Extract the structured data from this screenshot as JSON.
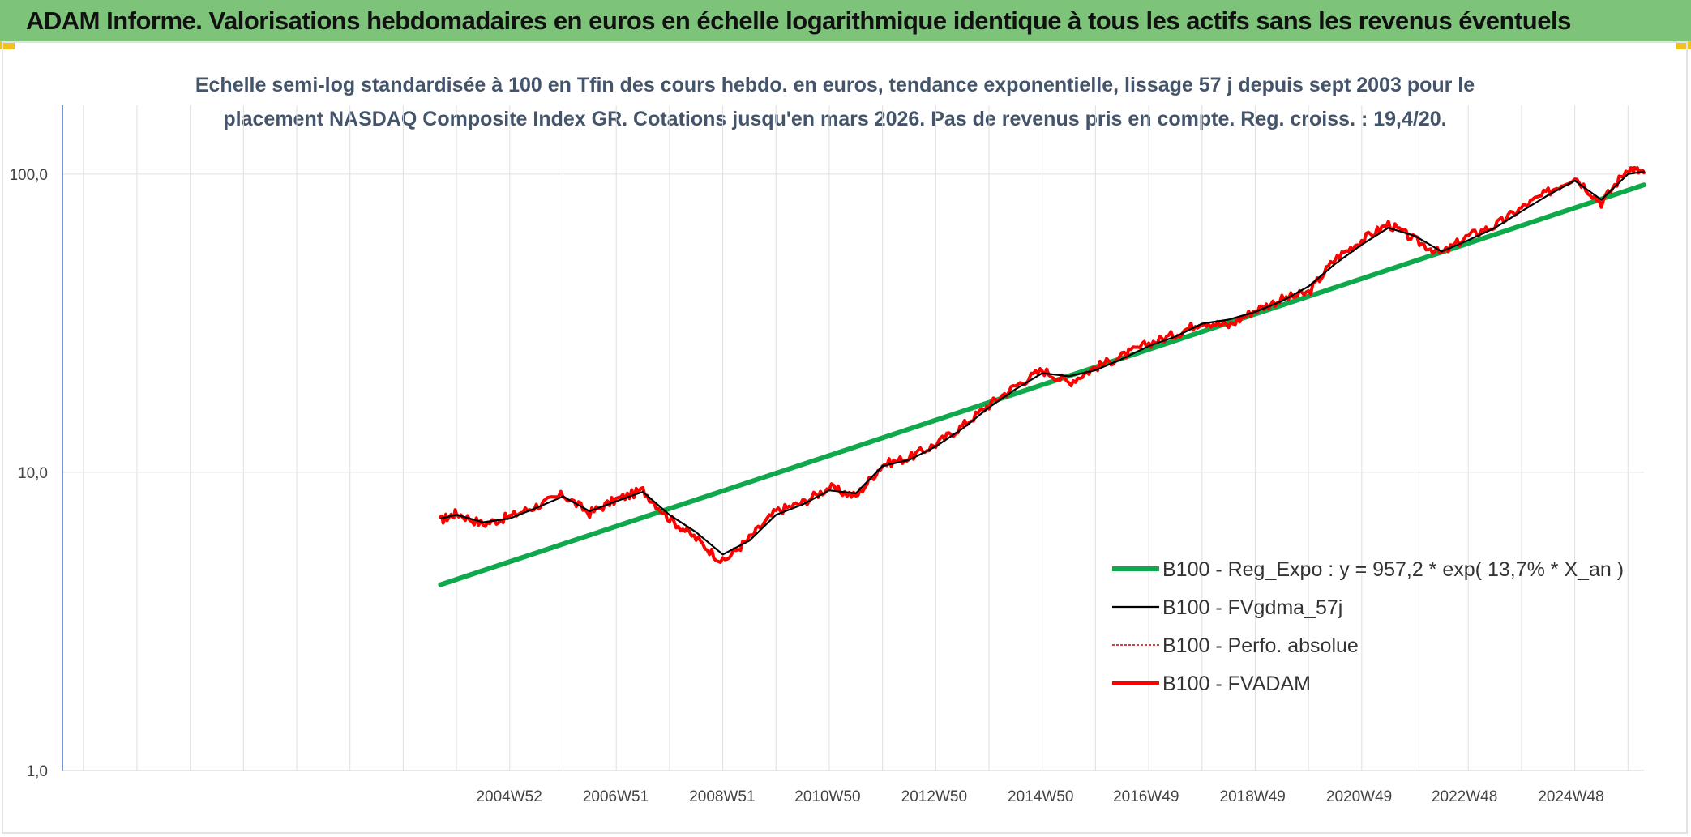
{
  "header": {
    "title": "ADAM Informe. Valorisations hebdomadaires en euros en échelle logarithmique identique à tous les actifs sans les revenus éventuels"
  },
  "colors": {
    "header_bg": "#7dc47a",
    "accent": "#f2c21b",
    "green": "#0fa84a",
    "black": "#000000",
    "red": "#ff0000"
  },
  "chart_data": {
    "type": "line",
    "title": "Echelle semi-log standardisée à 100 en Tfin des cours hebdo. en euros, tendance exponentielle, lissage 57 j depuis sept 2003 pour le placement NASDAQ Composite Index GR. Cotations jusqu'en mars 2026. Pas de revenus pris en compte. Reg. croiss. : 19,4/20.",
    "y_scale": "log",
    "ylim": [
      1,
      170
    ],
    "y_ticks": [
      1,
      10,
      100
    ],
    "y_tick_labels": [
      "1,0",
      "10,0",
      "100,0"
    ],
    "xlim": [
      1996.6,
      2026.3
    ],
    "x_ticks": [
      2004.99,
      2006.99,
      2008.99,
      2010.97,
      2012.97,
      2014.97,
      2016.95,
      2018.95,
      2020.95,
      2022.93,
      2024.93
    ],
    "x_tick_labels": [
      "2004W52",
      "2006W51",
      "2008W51",
      "2010W50",
      "2012W50",
      "2014W50",
      "2016W49",
      "2018W49",
      "2020W49",
      "2022W48",
      "2024W48"
    ],
    "grid": true,
    "legend_position": "bottom-right",
    "series": [
      {
        "name": "B100 - Reg_Expo : y = 957,2 * exp( 13,7% *  X_an )",
        "color": "#0fa84a",
        "x": [
          2003.7,
          2026.3
        ],
        "y": [
          4.2,
          92
        ]
      },
      {
        "name": "B100 - FVgdma_57j",
        "color": "#000000",
        "x": [
          2003.7,
          2004.0,
          2004.5,
          2005.0,
          2005.5,
          2006.0,
          2006.5,
          2007.0,
          2007.5,
          2008.0,
          2008.5,
          2009.0,
          2009.5,
          2010.0,
          2010.5,
          2011.0,
          2011.5,
          2012.0,
          2012.5,
          2013.0,
          2013.5,
          2014.0,
          2014.5,
          2015.0,
          2015.5,
          2016.0,
          2016.5,
          2017.0,
          2017.5,
          2018.0,
          2018.5,
          2019.0,
          2019.5,
          2020.0,
          2020.5,
          2021.0,
          2021.5,
          2022.0,
          2022.5,
          2023.0,
          2023.5,
          2024.0,
          2024.5,
          2025.0,
          2025.5,
          2026.0,
          2026.3
        ],
        "y": [
          7.0,
          7.2,
          6.8,
          7.0,
          7.6,
          8.3,
          7.4,
          8.0,
          8.6,
          7.2,
          6.3,
          5.3,
          5.9,
          7.2,
          7.8,
          8.7,
          8.5,
          10.5,
          11.0,
          12.2,
          14.0,
          16.5,
          19.0,
          21.5,
          21.0,
          22.0,
          24.0,
          26.5,
          28.5,
          31.5,
          32.5,
          34.5,
          37.5,
          42.0,
          50.0,
          58.0,
          66.0,
          62.0,
          55.0,
          60.0,
          66.0,
          75.0,
          85.0,
          95.0,
          82.0,
          100.0,
          102.0
        ]
      },
      {
        "name": "B100 - Perfo. absolue",
        "color": "#c00000",
        "x": [
          2003.7,
          2026.3
        ],
        "y": [
          7.0,
          102.0
        ]
      },
      {
        "name": "B100 - FVADAM",
        "color": "#ff0000",
        "x": [
          2003.7,
          2004.0,
          2004.5,
          2005.0,
          2005.5,
          2006.0,
          2006.5,
          2007.0,
          2007.5,
          2008.0,
          2008.5,
          2009.0,
          2009.5,
          2010.0,
          2010.5,
          2011.0,
          2011.5,
          2012.0,
          2012.5,
          2013.0,
          2013.5,
          2014.0,
          2014.5,
          2015.0,
          2015.5,
          2016.0,
          2016.5,
          2017.0,
          2017.5,
          2018.0,
          2018.5,
          2019.0,
          2019.5,
          2020.0,
          2020.5,
          2021.0,
          2021.5,
          2022.0,
          2022.5,
          2023.0,
          2023.5,
          2024.0,
          2024.5,
          2025.0,
          2025.5,
          2026.0,
          2026.3
        ],
        "y": [
          6.9,
          7.3,
          6.7,
          7.1,
          7.7,
          8.4,
          7.3,
          8.1,
          8.7,
          7.0,
          6.0,
          5.0,
          6.0,
          7.4,
          7.9,
          8.9,
          8.3,
          10.6,
          11.2,
          12.4,
          14.3,
          16.8,
          19.5,
          22.0,
          20.0,
          22.5,
          24.5,
          27.0,
          29.0,
          32.0,
          31.0,
          35.0,
          38.0,
          40.0,
          52.0,
          60.0,
          68.0,
          60.0,
          54.0,
          62.0,
          67.0,
          77.0,
          87.0,
          98.0,
          80.0,
          105.0,
          101.0
        ]
      }
    ]
  }
}
